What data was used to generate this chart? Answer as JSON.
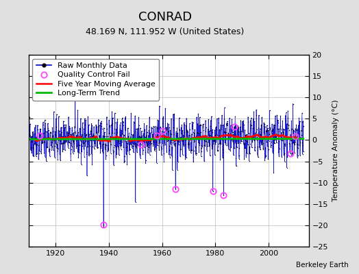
{
  "title": "CONRAD",
  "subtitle": "48.169 N, 111.952 W (United States)",
  "ylabel": "Temperature Anomaly (°C)",
  "attribution": "Berkeley Earth",
  "xlim": [
    1910,
    2015
  ],
  "ylim": [
    -25,
    20
  ],
  "yticks": [
    -25,
    -20,
    -15,
    -10,
    -5,
    0,
    5,
    10,
    15,
    20
  ],
  "xticks": [
    1920,
    1940,
    1960,
    1980,
    2000
  ],
  "x_start": 1910,
  "x_end": 2013,
  "n_months": 1236,
  "seed": 42,
  "background_color": "#e0e0e0",
  "plot_bg_color": "#ffffff",
  "raw_line_color": "#0000cc",
  "raw_dot_color": "#000000",
  "qc_fail_color": "#ff44ff",
  "moving_avg_color": "#ff0000",
  "trend_color": "#00bb00",
  "title_fontsize": 13,
  "subtitle_fontsize": 9,
  "legend_fontsize": 8,
  "axis_fontsize": 8,
  "ylabel_fontsize": 8,
  "moving_avg_window": 60,
  "trend_value": 0.5,
  "qc_fail_years": [
    1914,
    1938,
    1952,
    1958,
    1960,
    1965,
    1979,
    1983,
    1987,
    2008,
    2010
  ]
}
